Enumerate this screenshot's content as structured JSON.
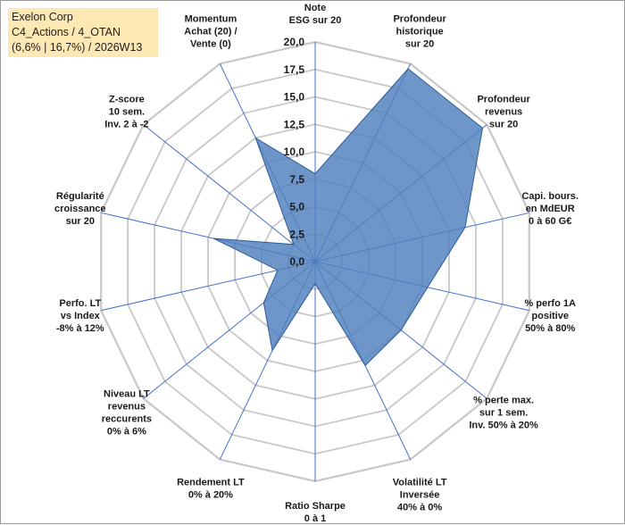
{
  "info_box": {
    "line1": "Exelon Corp",
    "line2": "C4_Actions / 4_OTAN",
    "line3": "(6,6% | 16,7%) / 2026W13"
  },
  "chart_data": {
    "type": "radar",
    "title": "",
    "rmin": 0,
    "rmax": 20,
    "tick_step": 2.5,
    "tick_labels": [
      "0,0",
      "2,5",
      "5,0",
      "7,5",
      "10,0",
      "12,5",
      "15,0",
      "17,5",
      "20,0"
    ],
    "axes": [
      {
        "label": [
          "Note",
          "ESG sur 20"
        ]
      },
      {
        "label": [
          "Profondeur",
          "historique",
          "sur 20"
        ]
      },
      {
        "label": [
          "Profondeur",
          "revenus",
          "sur 20"
        ]
      },
      {
        "label": [
          "Capi. bours.",
          "en MdEUR",
          "0 à 60 G€"
        ]
      },
      {
        "label": [
          "% perfo 1A",
          "positive",
          "50% à 80%"
        ]
      },
      {
        "label": [
          "% perte max.",
          "sur 1 sem.",
          "Inv. 50% à 20%"
        ]
      },
      {
        "label": [
          "Volatilité LT",
          "Inversée",
          "40% à 0%"
        ]
      },
      {
        "label": [
          "Ratio Sharpe",
          "0 à 1"
        ]
      },
      {
        "label": [
          "Rendement LT",
          "0% à 20%"
        ]
      },
      {
        "label": [
          "Niveau LT",
          "revenus",
          "reccurents",
          "0% à 6%"
        ]
      },
      {
        "label": [
          "Perfo. LT",
          "vs Index",
          "-8% à 12%"
        ]
      },
      {
        "label": [
          "Régularité",
          "croissance",
          "sur 20"
        ]
      },
      {
        "label": [
          "Z-score",
          "10 sem.",
          "Inv. 2 à -2"
        ]
      },
      {
        "label": [
          "Momentum",
          "Achat (20) /",
          "Vente (0)"
        ]
      }
    ],
    "series": [
      {
        "name": "Exelon Corp",
        "values": [
          8.0,
          19.5,
          19.5,
          14.0,
          10.5,
          10.0,
          10.5,
          2.0,
          9.0,
          6.0,
          3.5,
          9.5,
          2.5,
          12.5
        ],
        "fill": "#4f7fbd",
        "fill_opacity": 0.82,
        "stroke": "#2e5c97"
      }
    ],
    "grid_color": "#c8c8c8",
    "spoke_color": "#4472c4"
  }
}
